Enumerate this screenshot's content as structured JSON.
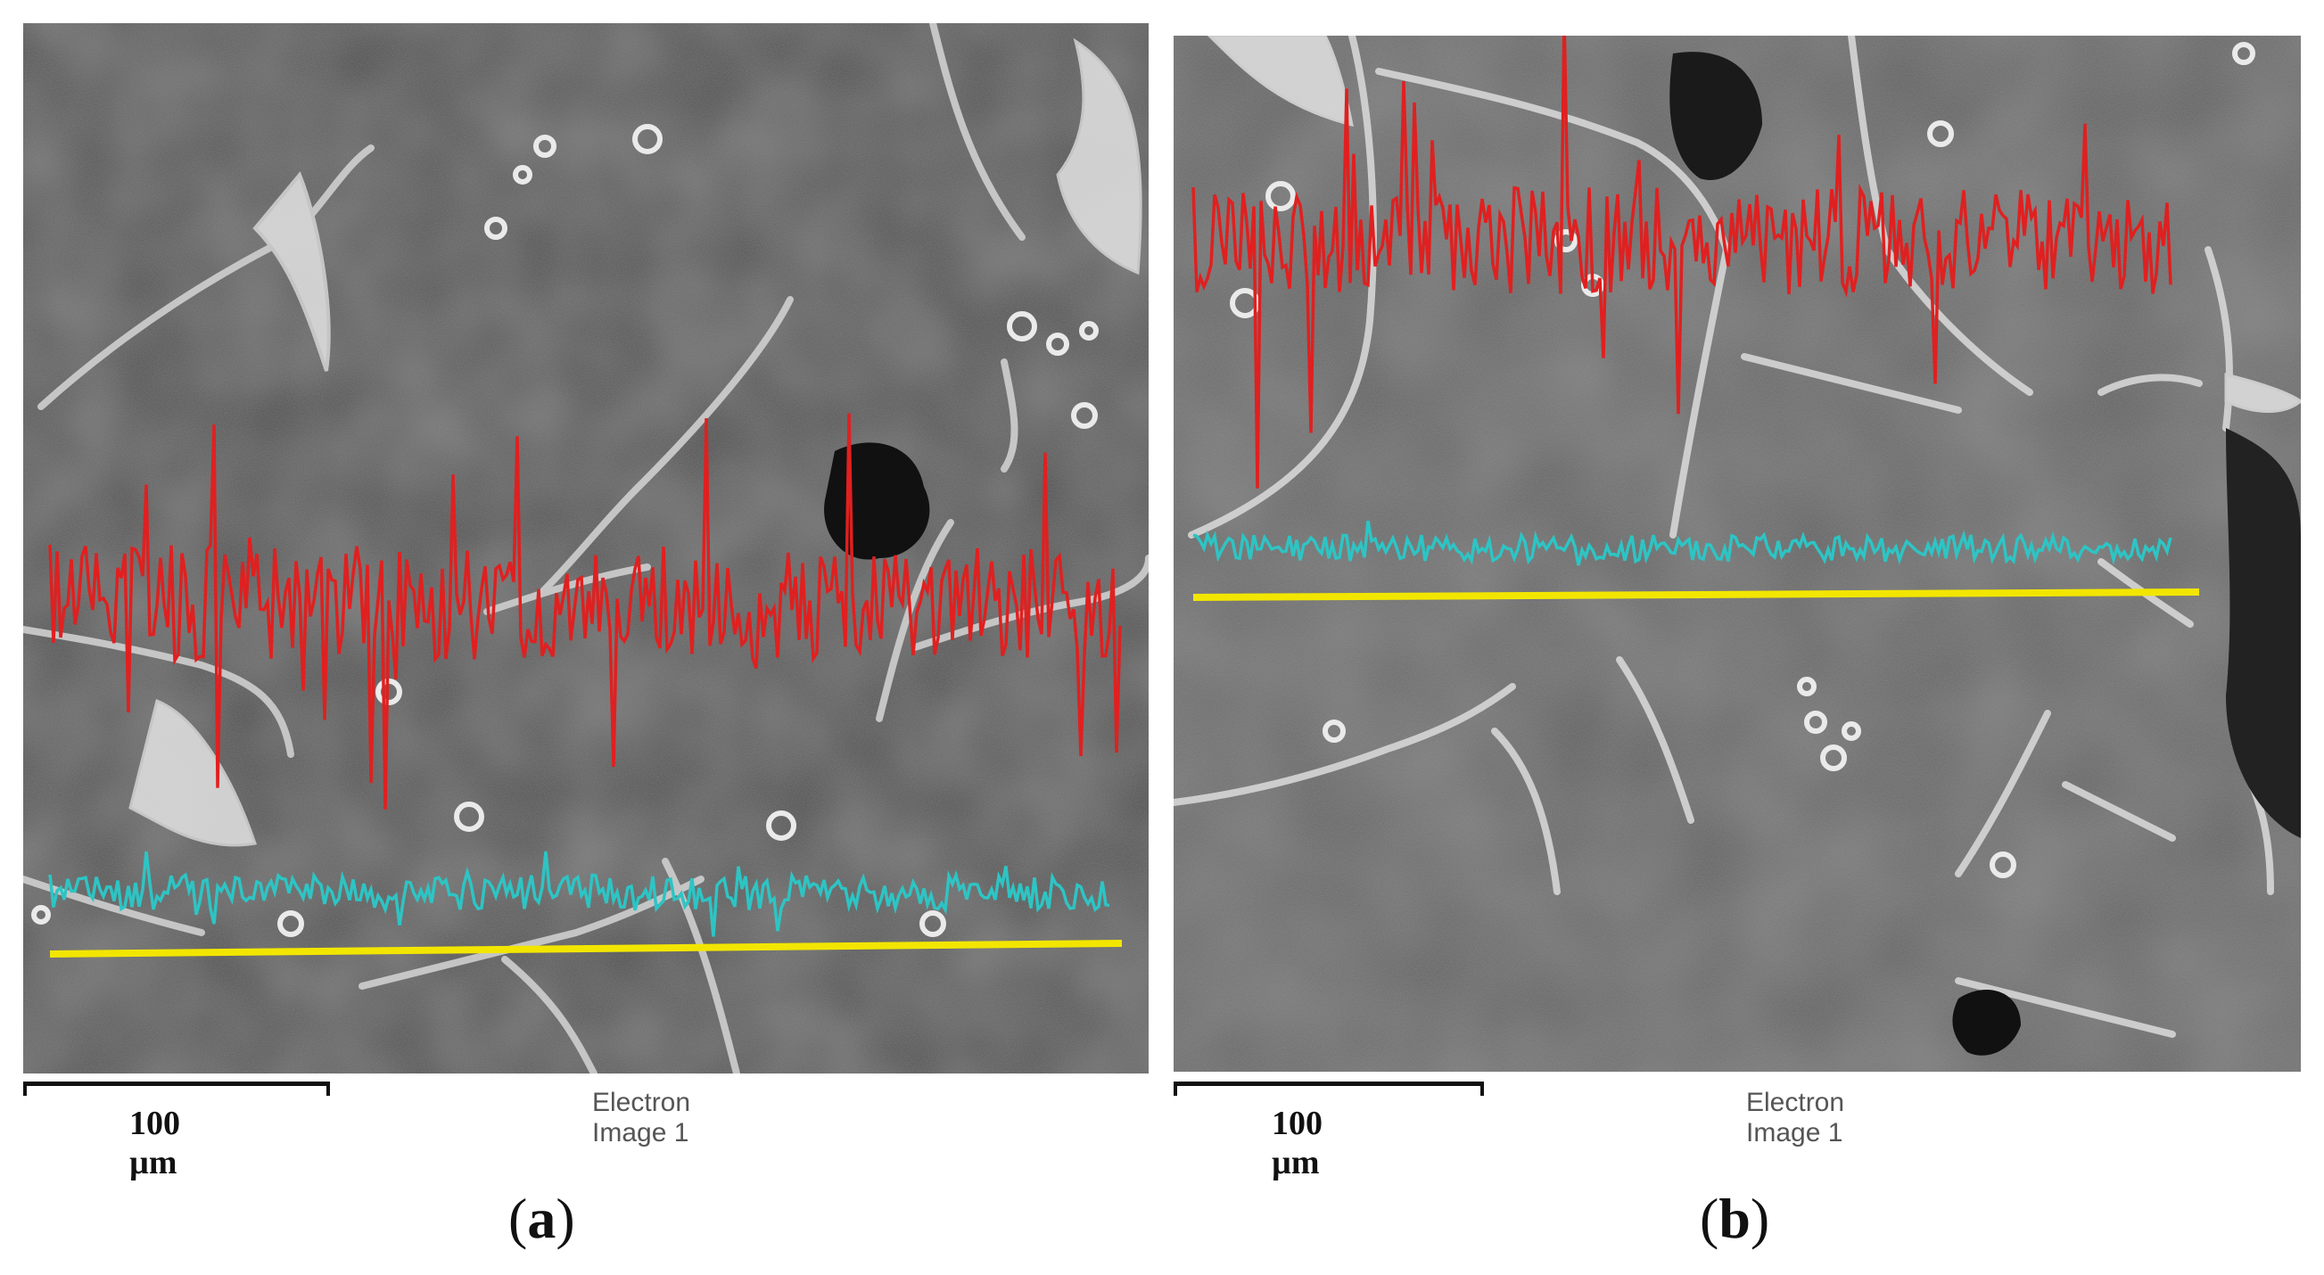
{
  "panels": [
    {
      "id": "a",
      "scale_label": "100 µm",
      "image_caption": "Electron Image 1",
      "label_open": "(",
      "label_letter": "a",
      "label_close": ")"
    },
    {
      "id": "b",
      "scale_label": "100 µm",
      "image_caption": "Electron Image 1",
      "label_open": "(",
      "label_letter": "b",
      "label_close": ")"
    }
  ],
  "colors": {
    "background": "#4a4a4a",
    "grain_boundary": "#e6e6e6",
    "profile_upper": "#e02020",
    "profile_lower": "#2ec4c4",
    "scan_line": "#f2e600"
  }
}
